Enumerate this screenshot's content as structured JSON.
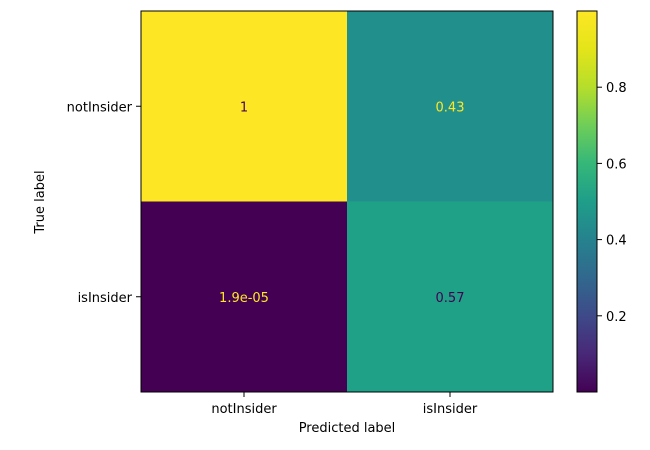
{
  "chart_data": {
    "type": "heatmap",
    "title": "",
    "xlabel": "Predicted label",
    "ylabel": "True label",
    "x_categories": [
      "notInsider",
      "isInsider"
    ],
    "y_categories": [
      "notInsider",
      "isInsider"
    ],
    "values": [
      [
        1,
        0.43
      ],
      [
        1.9e-05,
        0.57
      ]
    ],
    "cell_labels": [
      [
        "1",
        "0.43"
      ],
      [
        "1.9e-05",
        "0.57"
      ]
    ],
    "colormap": "viridis",
    "colorbar": {
      "range": [
        0,
        1
      ],
      "ticks": [
        0.2,
        0.4,
        0.6,
        0.8
      ],
      "tick_labels": [
        "0.2",
        "0.4",
        "0.6",
        "0.8"
      ]
    },
    "colors": {
      "cell_high": "#fde725",
      "cell_mid_high": "#21908d",
      "cell_mid": "#1fa187",
      "cell_low": "#440154",
      "text_on_dark": "#fde725",
      "text_on_light": "#440154"
    }
  }
}
